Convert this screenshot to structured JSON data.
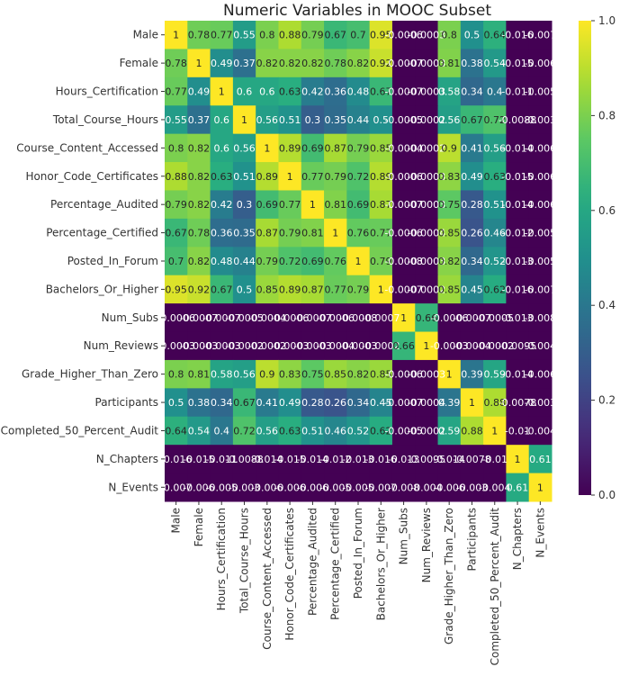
{
  "chart_data": {
    "type": "heatmap",
    "title": "Numeric Variables in MOOC Subset",
    "xlabel": "",
    "ylabel": "",
    "colormap": "viridis",
    "color_range": [
      0,
      1
    ],
    "colorbar_ticks": [
      0.0,
      0.2,
      0.4,
      0.6,
      0.8,
      1.0
    ],
    "colorbar_tick_labels": [
      "0.0",
      "0.2",
      "0.4",
      "0.6",
      "0.8",
      "1.0"
    ],
    "labels": [
      "Male",
      "Female",
      "Hours_Certification",
      "Total_Course_Hours",
      "Course_Content_Accessed",
      "Honor_Code_Certificates",
      "Percentage_Audited",
      "Percentage_Certified",
      "Posted_In_Forum",
      "Bachelors_Or_Higher",
      "Num_Subs",
      "Num_Reviews",
      "Grade_Higher_Than_Zero",
      "Participants",
      "Completed_50_Percent_Audit",
      "N_Chapters",
      "N_Events"
    ],
    "values": [
      [
        1,
        0.78,
        0.77,
        0.55,
        0.8,
        0.88,
        0.79,
        0.67,
        0.7,
        0.95,
        -0.0006,
        -0.0003,
        0.8,
        0.5,
        0.64,
        -0.016,
        -0.007
      ],
      [
        0.78,
        1,
        0.49,
        0.37,
        0.82,
        0.82,
        0.82,
        0.78,
        0.82,
        0.92,
        -0.0007,
        -0.0003,
        0.81,
        0.38,
        0.54,
        -0.015,
        -0.006
      ],
      [
        0.77,
        0.49,
        1,
        0.6,
        0.6,
        0.63,
        0.42,
        0.36,
        0.48,
        0.67,
        -0.0007,
        -0.0003,
        0.58,
        0.34,
        0.4,
        -0.011,
        -0.005
      ],
      [
        0.55,
        0.37,
        0.6,
        1,
        0.56,
        0.51,
        0.3,
        0.35,
        0.44,
        0.5,
        -0.0005,
        -0.0002,
        0.56,
        0.67,
        0.72,
        -0.0088,
        -0.003
      ],
      [
        0.8,
        0.82,
        0.6,
        0.56,
        1,
        0.89,
        0.69,
        0.87,
        0.79,
        0.85,
        -0.0004,
        -0.0002,
        0.9,
        0.41,
        0.56,
        -0.014,
        -0.006
      ],
      [
        0.88,
        0.82,
        0.63,
        0.51,
        0.89,
        1,
        0.77,
        0.79,
        0.72,
        0.89,
        -0.0006,
        -0.0003,
        0.83,
        0.49,
        0.63,
        -0.015,
        -0.006
      ],
      [
        0.79,
        0.82,
        0.42,
        0.3,
        0.69,
        0.77,
        1,
        0.81,
        0.69,
        0.87,
        -0.0007,
        -0.0003,
        0.75,
        0.28,
        0.51,
        -0.014,
        -0.006
      ],
      [
        0.67,
        0.78,
        0.36,
        0.35,
        0.87,
        0.79,
        0.81,
        1,
        0.76,
        0.77,
        -0.0006,
        -0.0004,
        0.85,
        0.26,
        0.46,
        -0.012,
        -0.005
      ],
      [
        0.7,
        0.82,
        0.48,
        0.44,
        0.79,
        0.72,
        0.69,
        0.76,
        1,
        0.79,
        -0.0008,
        -0.0003,
        0.82,
        0.34,
        0.52,
        -0.013,
        -0.005
      ],
      [
        0.95,
        0.92,
        0.67,
        0.5,
        0.85,
        0.89,
        0.87,
        0.77,
        0.79,
        1,
        -0.0007,
        -0.0002,
        0.85,
        0.45,
        0.62,
        -0.016,
        -0.007
      ],
      [
        -0.0006,
        -0.0007,
        -0.0007,
        -0.0005,
        -0.0004,
        -0.0006,
        -0.0007,
        -0.0006,
        -0.0008,
        -0.0007,
        1,
        0.66,
        -0.0006,
        -0.0007,
        -0.0005,
        -0.013,
        -0.008
      ],
      [
        -0.0003,
        -0.0003,
        -0.0003,
        -0.0002,
        -0.0002,
        -0.0003,
        -0.0003,
        -0.0004,
        -0.0003,
        -0.0002,
        0.66,
        1,
        -0.0003,
        -0.0004,
        -0.0002,
        -0.0095,
        -0.004
      ],
      [
        0.8,
        0.81,
        0.58,
        0.56,
        0.9,
        0.83,
        0.75,
        0.85,
        0.82,
        0.85,
        -0.0006,
        -0.0003,
        1,
        0.39,
        0.59,
        -0.014,
        -0.006
      ],
      [
        0.5,
        0.38,
        0.34,
        0.67,
        0.41,
        0.49,
        0.28,
        0.26,
        0.34,
        0.45,
        -0.0007,
        -0.0004,
        0.39,
        1,
        0.88,
        -0.0078,
        -0.003
      ],
      [
        0.64,
        0.54,
        0.4,
        0.72,
        0.56,
        0.63,
        0.51,
        0.46,
        0.52,
        0.62,
        -0.0005,
        -0.0002,
        0.59,
        0.88,
        1,
        -0.01,
        -0.004
      ],
      [
        -0.016,
        -0.015,
        -0.011,
        -0.0088,
        -0.014,
        -0.015,
        -0.014,
        -0.012,
        -0.013,
        -0.016,
        -0.013,
        -0.0095,
        -0.014,
        -0.0078,
        -0.01,
        1,
        0.61
      ],
      [
        -0.007,
        -0.006,
        -0.005,
        -0.003,
        -0.006,
        -0.006,
        -0.006,
        -0.005,
        -0.005,
        -0.007,
        -0.008,
        -0.004,
        -0.006,
        -0.003,
        -0.004,
        0.61,
        1
      ]
    ],
    "annotation_labels": [
      [
        "1",
        "0.78",
        "0.77",
        "0.55",
        "0.8",
        "0.88",
        "0.79",
        "0.67",
        "0.7",
        "0.95",
        "-0.0006",
        "-0.0003",
        "0.8",
        "0.5",
        "0.64",
        "-0.016",
        "-0.007"
      ],
      [
        "0.78",
        "1",
        "0.49",
        "0.37",
        "0.82",
        "0.82",
        "0.82",
        "0.78",
        "0.82",
        "0.92",
        "-0.0007",
        "-0.0003",
        "0.81",
        "0.38",
        "0.54",
        "-0.015",
        "-0.006"
      ],
      [
        "0.77",
        "0.49",
        "1",
        "0.6",
        "0.6",
        "0.63",
        "0.42",
        "0.36",
        "0.48",
        "0.67",
        "-0.0007",
        "-0.0003",
        "0.58",
        "0.34",
        "0.4",
        "-0.011",
        "-0.005"
      ],
      [
        "0.55",
        "0.37",
        "0.6",
        "1",
        "0.56",
        "0.51",
        "0.3",
        "0.35",
        "0.44",
        "0.5",
        "-0.0005",
        "-0.0002",
        "0.56",
        "0.67",
        "0.72",
        "-0.0088",
        "-0.003"
      ],
      [
        "0.8",
        "0.82",
        "0.6",
        "0.56",
        "1",
        "0.89",
        "0.69",
        "0.87",
        "0.79",
        "0.85",
        "-0.0004",
        "-0.0002",
        "0.9",
        "0.41",
        "0.56",
        "-0.014",
        "-0.006"
      ],
      [
        "0.88",
        "0.82",
        "0.63",
        "0.51",
        "0.89",
        "1",
        "0.77",
        "0.79",
        "0.72",
        "0.89",
        "-0.0006",
        "-0.0003",
        "0.83",
        "0.49",
        "0.63",
        "-0.015",
        "-0.006"
      ],
      [
        "0.79",
        "0.82",
        "0.42",
        "0.3",
        "0.69",
        "0.77",
        "1",
        "0.81",
        "0.69",
        "0.87",
        "-0.0007",
        "-0.0003",
        "0.75",
        "0.28",
        "0.51",
        "-0.014",
        "-0.006"
      ],
      [
        "0.67",
        "0.78",
        "0.36",
        "0.35",
        "0.87",
        "0.79",
        "0.81",
        "1",
        "0.76",
        "0.77",
        "-0.0006",
        "-0.0004",
        "0.85",
        "0.26",
        "0.46",
        "-0.012",
        "-0.005"
      ],
      [
        "0.7",
        "0.82",
        "0.48",
        "0.44",
        "0.79",
        "0.72",
        "0.69",
        "0.76",
        "1",
        "0.79",
        "-0.0008",
        "-0.0003",
        "0.82",
        "0.34",
        "0.52",
        "-0.013",
        "-0.005"
      ],
      [
        "0.95",
        "0.92",
        "0.67",
        "0.5",
        "0.85",
        "0.89",
        "0.87",
        "0.77",
        "0.79",
        "1",
        "-0.0007",
        "-0.0002",
        "0.85",
        "0.45",
        "0.62",
        "-0.016",
        "-0.007"
      ],
      [
        "-0.0006",
        "-0.0007",
        "-0.0007",
        "-0.0005",
        "-0.0004",
        "-0.0006",
        "-0.0007",
        "-0.0006",
        "-0.0008",
        "-0.0007",
        "1",
        "0.66",
        "-0.0006",
        "-0.0007",
        "-0.0005",
        "-0.013",
        "-0.008"
      ],
      [
        "-0.0003",
        "-0.0003",
        "-0.0003",
        "-0.0002",
        "-0.0002",
        "-0.0003",
        "-0.0003",
        "-0.0004",
        "-0.0003",
        "-0.0002",
        "0.66",
        "1",
        "-0.0003",
        "-0.0004",
        "-0.0002",
        "-0.0095",
        "-0.004"
      ],
      [
        "0.8",
        "0.81",
        "0.58",
        "0.56",
        "0.9",
        "0.83",
        "0.75",
        "0.85",
        "0.82",
        "0.85",
        "-0.0006",
        "-0.0003",
        "1",
        "0.39",
        "0.59",
        "-0.014",
        "-0.006"
      ],
      [
        "0.5",
        "0.38",
        "0.34",
        "0.67",
        "0.41",
        "0.49",
        "0.28",
        "0.26",
        "0.34",
        "0.45",
        "-0.0007",
        "-0.0004",
        "0.39",
        "1",
        "0.88",
        "-0.0078",
        "-0.003"
      ],
      [
        "0.64",
        "0.54",
        "0.4",
        "0.72",
        "0.56",
        "0.63",
        "0.51",
        "0.46",
        "0.52",
        "0.62",
        "-0.0005",
        "-0.0002",
        "0.59",
        "0.88",
        "1",
        "-0.01",
        "-0.004"
      ],
      [
        "-0.016",
        "-0.015",
        "-0.011",
        "-0.0088",
        "-0.014",
        "-0.015",
        "-0.014",
        "-0.012",
        "-0.013",
        "-0.016",
        "-0.013",
        "-0.0095",
        "-0.014",
        "-0.0078",
        "-0.01",
        "1",
        "0.61"
      ],
      [
        "-0.007",
        "-0.006",
        "-0.005",
        "-0.003",
        "-0.006",
        "-0.006",
        "-0.006",
        "-0.005",
        "-0.005",
        "-0.007",
        "-0.008",
        "-0.004",
        "-0.006",
        "-0.003",
        "-0.004",
        "0.61",
        "1"
      ]
    ]
  }
}
